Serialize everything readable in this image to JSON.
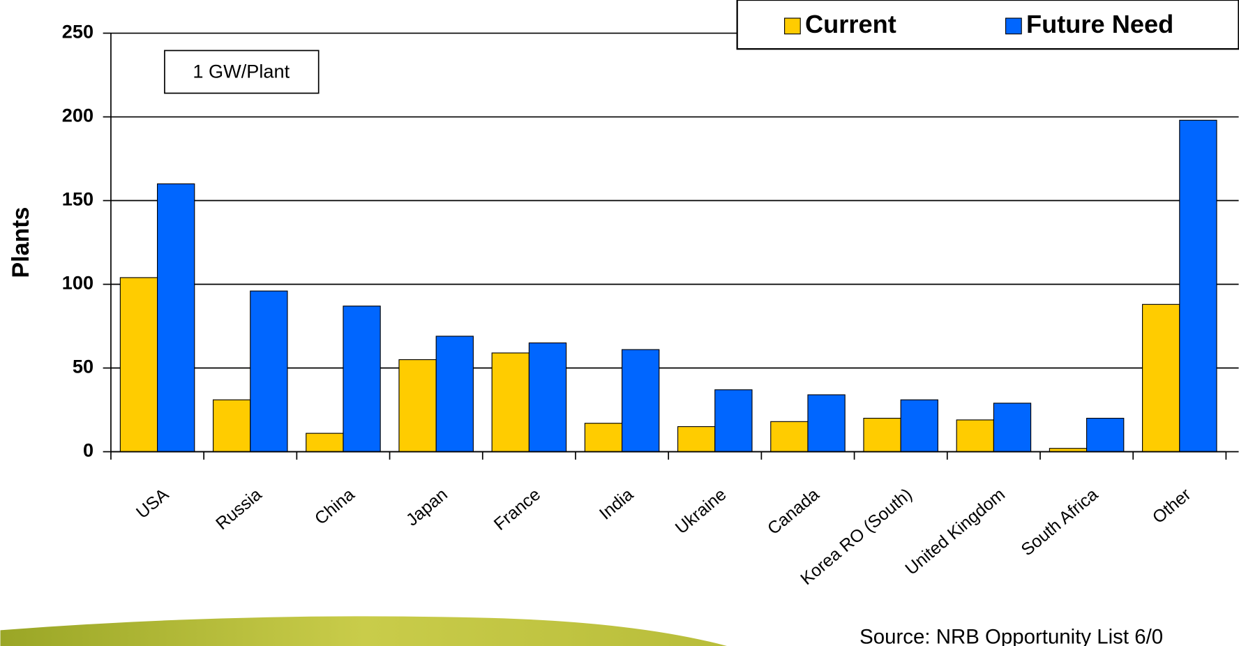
{
  "chart_data": {
    "type": "bar",
    "y_label": "Plants",
    "annotation": "1 GW/Plant",
    "source": "Source: NRB Opportunity List 6/0",
    "categories": [
      "USA",
      "Russia",
      "China",
      "Japan",
      "France",
      "India",
      "Ukraine",
      "Canada",
      "Korea RO (South)",
      "United Kingdom",
      "South Africa",
      "Other"
    ],
    "series": [
      {
        "name": "Current",
        "color": "#ffcc00",
        "values": [
          104,
          31,
          11,
          55,
          59,
          17,
          15,
          18,
          20,
          19,
          2,
          88
        ]
      },
      {
        "name": "Future Need",
        "color": "#0066ff",
        "values": [
          160,
          96,
          87,
          69,
          65,
          61,
          37,
          34,
          31,
          29,
          20,
          198
        ]
      }
    ],
    "ylim": [
      0,
      250
    ],
    "yticks": [
      0,
      50,
      100,
      150,
      200,
      250
    ],
    "grid": true,
    "legend": "top-right"
  }
}
